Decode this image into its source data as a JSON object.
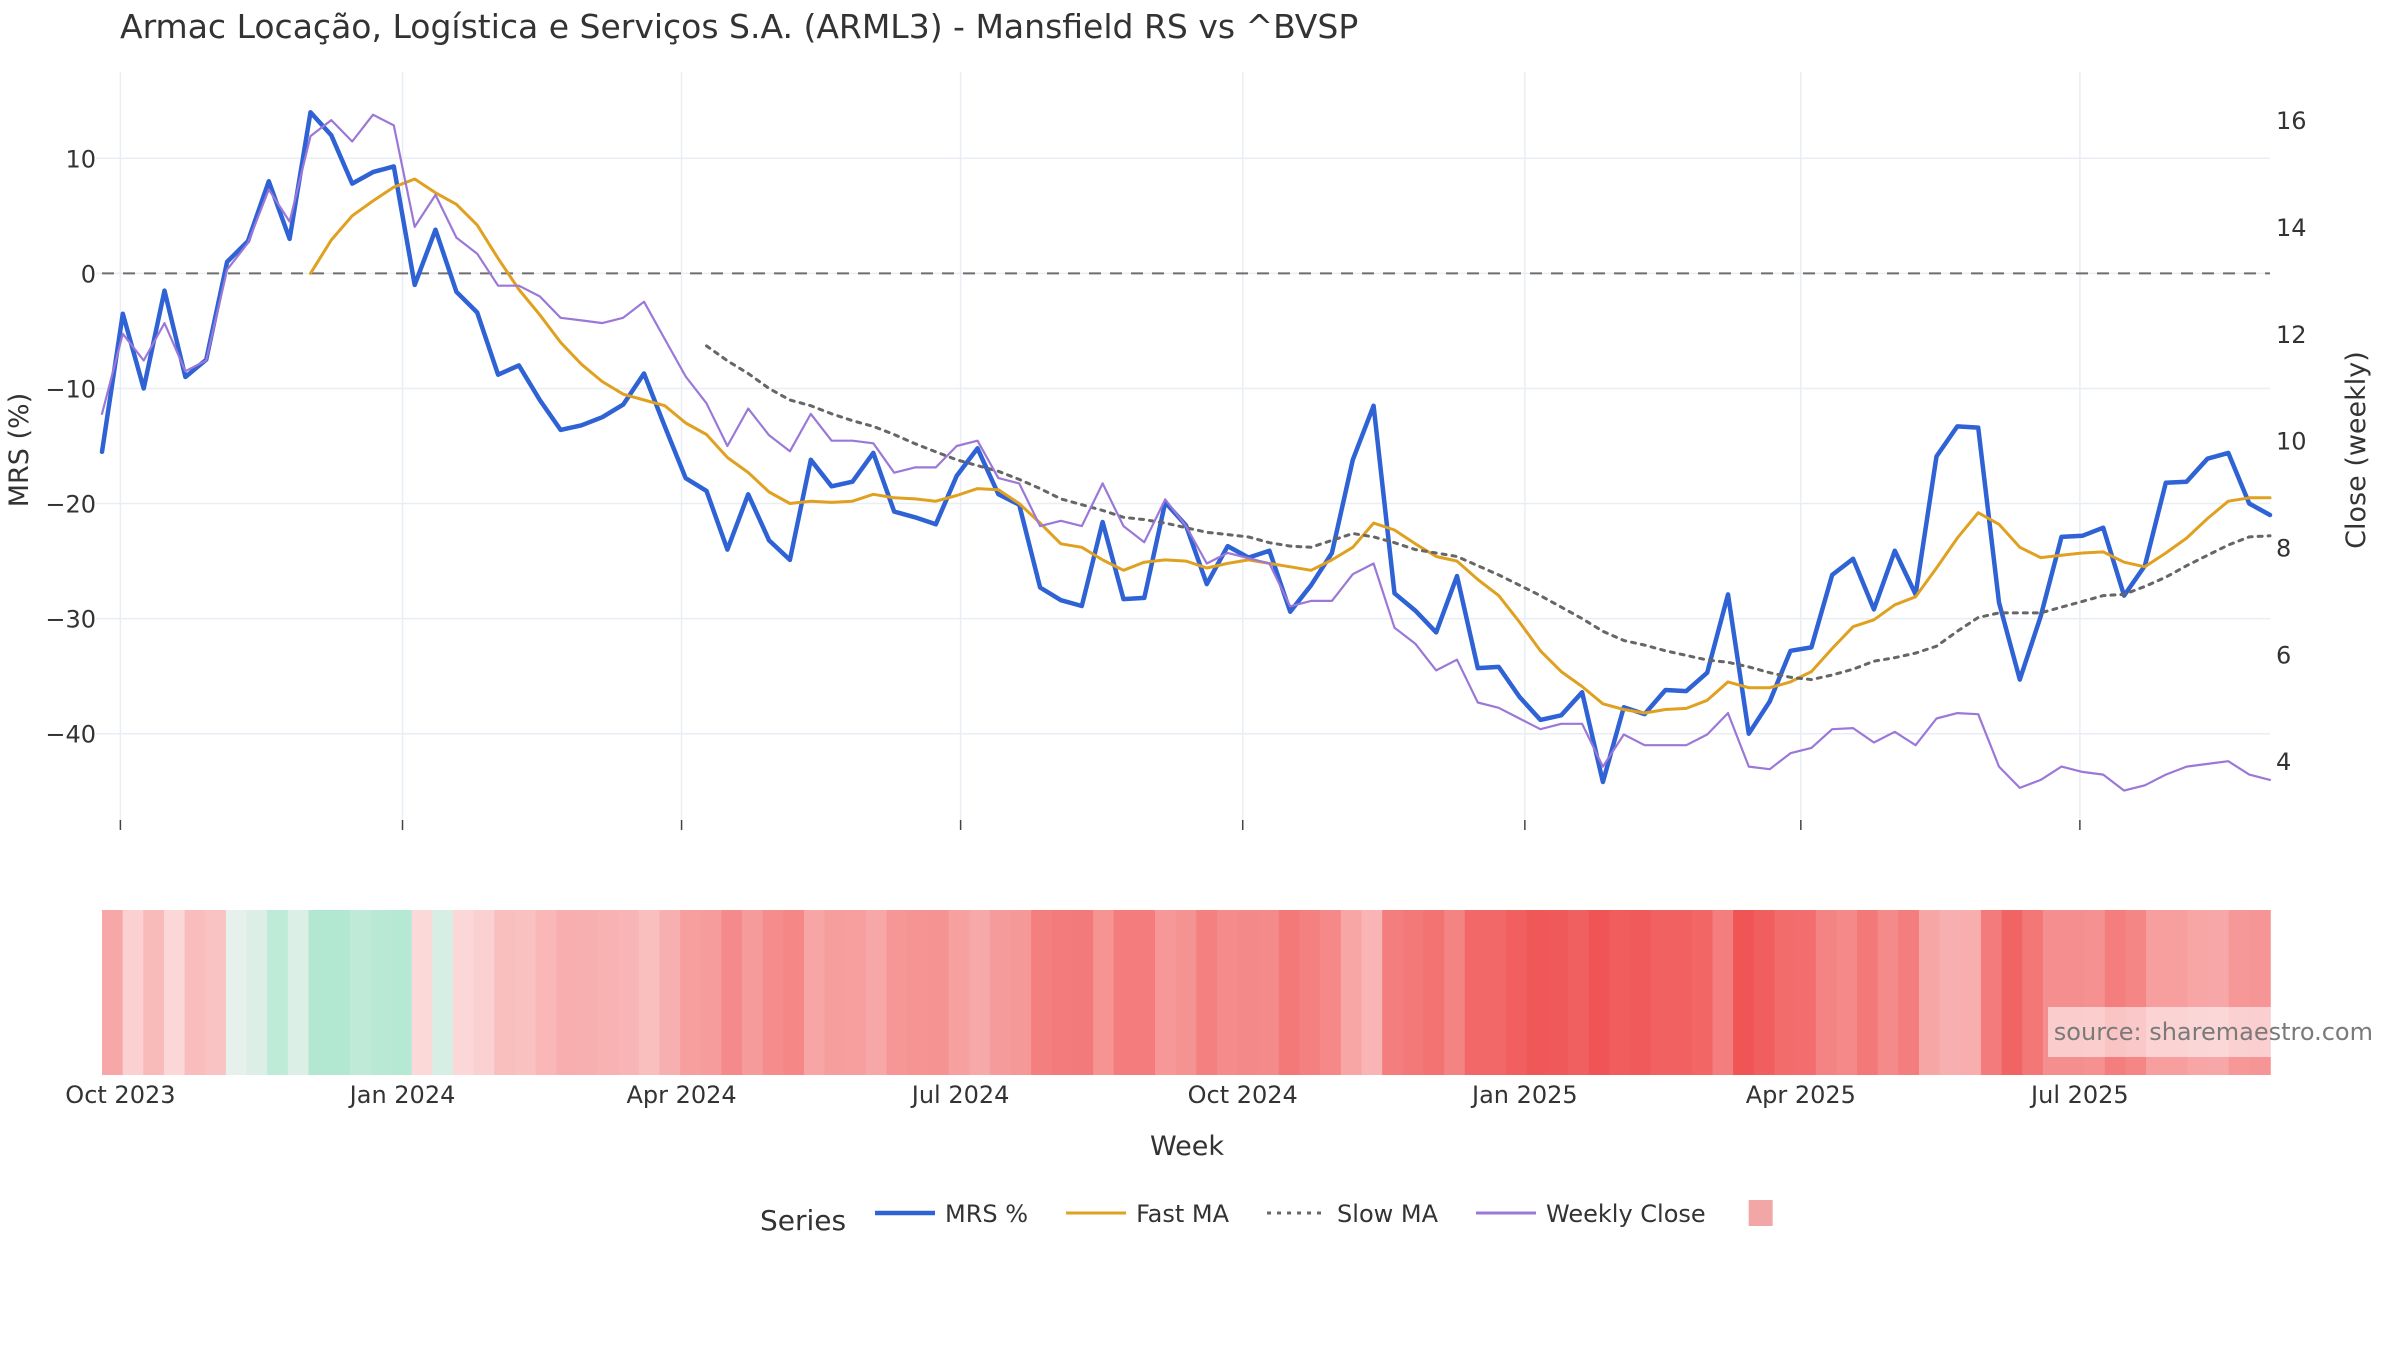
{
  "title": "Armac Locação, Logística e Serviços S.A. (ARML3) - Mansfield RS vs ^BVSP",
  "source": "source: sharemaestro.com",
  "chart_data": {
    "type": "line",
    "title": "Armac Locação, Logística e Serviços S.A. (ARML3) - Mansfield RS vs ^BVSP",
    "xlabel": "Week",
    "ylabel_left": "MRS (%)",
    "ylabel_right": "Close (weekly)",
    "ylim_left": [
      -47.5,
      17.5
    ],
    "ylim_right": [
      2.9,
      16.9
    ],
    "yticks_left": [
      10,
      0,
      -10,
      -20,
      -30,
      -40
    ],
    "yticks_right": [
      16,
      14,
      12,
      10,
      8,
      6,
      4
    ],
    "x_start": "2023-09-25",
    "x_end": "2025-09-01",
    "x_ticks": [
      {
        "date": "2023-10-01",
        "label": "Oct 2023"
      },
      {
        "date": "2024-01-01",
        "label": "Jan 2024"
      },
      {
        "date": "2024-04-01",
        "label": "Apr 2024"
      },
      {
        "date": "2024-07-01",
        "label": "Jul 2024"
      },
      {
        "date": "2024-10-01",
        "label": "Oct 2024"
      },
      {
        "date": "2025-01-01",
        "label": "Jan 2025"
      },
      {
        "date": "2025-04-01",
        "label": "Apr 2025"
      },
      {
        "date": "2025-07-01",
        "label": "Jul 2025"
      }
    ],
    "reference_line": 0,
    "grid": true,
    "legend_title": "Series",
    "legend_position": "bottom-center",
    "series": [
      {
        "name": "MRS %",
        "axis": "left",
        "color": "#2f62d4",
        "style": "solid",
        "values": [
          -15.5,
          -3.5,
          -10,
          -1.5,
          -9,
          -7.5,
          1,
          2.8,
          8,
          3,
          14,
          12,
          7.8,
          8.8,
          9.3,
          -1,
          3.8,
          -1.6,
          -3.4,
          -8.8,
          -8,
          -11,
          -13.6,
          -13.2,
          -12.5,
          -11.4,
          -8.7,
          -13.3,
          -17.8,
          -18.9,
          -24,
          -19.2,
          -23.2,
          -24.9,
          -16.2,
          -18.5,
          -18.1,
          -15.6,
          -20.7,
          -21.2,
          -21.8,
          -17.6,
          -15.2,
          -19.2,
          -20.1,
          -27.3,
          -28.4,
          -28.9,
          -21.6,
          -28.3,
          -28.2,
          -19.9,
          -21.9,
          -27,
          -23.7,
          -24.7,
          -24.1,
          -29.4,
          -27.1,
          -24.3,
          -16.2,
          -11.5,
          -27.8,
          -29.3,
          -31.2,
          -26.3,
          -34.3,
          -34.2,
          -36.8,
          -38.8,
          -38.4,
          -36.4,
          -44.2,
          -37.7,
          -38.3,
          -36.2,
          -36.3,
          -34.7,
          -27.9,
          -40,
          -37.2,
          -32.8,
          -32.5,
          -26.2,
          -24.8,
          -29.2,
          -24.1,
          -27.9,
          -15.9,
          -13.3,
          -13.4,
          -28.6,
          -35.3,
          -29.8,
          -22.9,
          -22.8,
          -22.1,
          -28,
          -25.4,
          -18.2,
          -18.1,
          -16.1,
          -15.6,
          -20,
          -21
        ]
      },
      {
        "name": "Fast MA",
        "axis": "left",
        "color": "#e0a020",
        "style": "solid",
        "values": [
          null,
          null,
          null,
          null,
          null,
          null,
          null,
          null,
          null,
          null,
          0,
          2.9,
          5,
          6.3,
          7.5,
          8.2,
          7,
          6,
          4.2,
          1.3,
          -1.4,
          -3.6,
          -6,
          -7.9,
          -9.4,
          -10.5,
          -11,
          -11.5,
          -13,
          -14,
          -16,
          -17.3,
          -19,
          -20,
          -19.8,
          -19.9,
          -19.8,
          -19.2,
          -19.5,
          -19.6,
          -19.8,
          -19.3,
          -18.7,
          -18.8,
          -20,
          -21.7,
          -23.5,
          -23.8,
          -24.9,
          -25.8,
          -25.1,
          -24.9,
          -25,
          -25.6,
          -25.2,
          -24.9,
          -25.2,
          -25.5,
          -25.8,
          -24.9,
          -23.8,
          -21.7,
          -22.3,
          -23.5,
          -24.6,
          -25,
          -26.6,
          -28,
          -30.3,
          -32.8,
          -34.6,
          -35.9,
          -37.4,
          -37.9,
          -38.2,
          -37.9,
          -37.8,
          -37.1,
          -35.5,
          -36,
          -36,
          -35.5,
          -34.6,
          -32.6,
          -30.7,
          -30.1,
          -28.8,
          -28.1,
          -25.6,
          -23,
          -20.8,
          -21.8,
          -23.8,
          -24.7,
          -24.5,
          -24.3,
          -24.2,
          -25.1,
          -25.5,
          -24.3,
          -23,
          -21.3,
          -19.8,
          -19.5,
          -19.5
        ]
      },
      {
        "name": "Slow MA",
        "axis": "left",
        "color": "#666666",
        "style": "dotted",
        "values": [
          null,
          null,
          null,
          null,
          null,
          null,
          null,
          null,
          null,
          null,
          null,
          null,
          null,
          null,
          null,
          null,
          null,
          null,
          null,
          null,
          null,
          null,
          null,
          null,
          null,
          null,
          null,
          null,
          null,
          -6.3,
          -7.6,
          -8.7,
          -10,
          -11,
          -11.5,
          -12.2,
          -12.8,
          -13.3,
          -14,
          -14.8,
          -15.5,
          -16.2,
          -16.7,
          -17.2,
          -17.9,
          -18.7,
          -19.6,
          -20.1,
          -20.6,
          -21.2,
          -21.4,
          -21.7,
          -22.1,
          -22.5,
          -22.7,
          -22.9,
          -23.4,
          -23.7,
          -23.8,
          -23.2,
          -22.6,
          -22.9,
          -23.4,
          -24,
          -24.3,
          -24.6,
          -25.4,
          -26.2,
          -27.1,
          -28,
          -29,
          -30,
          -31.1,
          -31.9,
          -32.3,
          -32.8,
          -33.2,
          -33.6,
          -33.8,
          -34.2,
          -34.7,
          -35.1,
          -35.3,
          -34.9,
          -34.4,
          -33.7,
          -33.4,
          -33,
          -32.4,
          -31.1,
          -29.9,
          -29.5,
          -29.5,
          -29.5,
          -29,
          -28.5,
          -28,
          -27.9,
          -27.2,
          -26.4,
          -25.4,
          -24.5,
          -23.6,
          -22.9,
          -22.8
        ]
      },
      {
        "name": "Weekly Close",
        "axis": "right",
        "color": "#9b78d8",
        "style": "solid",
        "values": [
          10.5,
          12,
          11.5,
          12.2,
          11.3,
          11.5,
          13.2,
          13.7,
          14.7,
          14.1,
          15.7,
          16,
          15.6,
          16.1,
          15.9,
          14,
          14.6,
          13.8,
          13.5,
          12.9,
          12.9,
          12.7,
          12.3,
          12.25,
          12.2,
          12.3,
          12.6,
          11.9,
          11.2,
          10.7,
          9.9,
          10.6,
          10.1,
          9.8,
          10.5,
          10,
          10,
          9.95,
          9.4,
          9.5,
          9.5,
          9.9,
          10,
          9.3,
          9.2,
          8.4,
          8.5,
          8.4,
          9.2,
          8.4,
          8.1,
          8.9,
          8.4,
          7.7,
          7.9,
          7.8,
          7.7,
          6.9,
          7,
          7,
          7.5,
          7.7,
          6.5,
          6.2,
          5.7,
          5.9,
          5.1,
          5,
          4.8,
          4.6,
          4.7,
          4.7,
          3.9,
          4.5,
          4.3,
          4.3,
          4.3,
          4.5,
          4.9,
          3.9,
          3.85,
          4.15,
          4.25,
          4.6,
          4.62,
          4.35,
          4.55,
          4.3,
          4.8,
          4.9,
          4.88,
          3.9,
          3.5,
          3.65,
          3.9,
          3.8,
          3.75,
          3.45,
          3.55,
          3.75,
          3.9,
          3.95,
          4,
          3.75,
          3.65
        ]
      }
    ],
    "heat_strip": {
      "legend_swatch_color": "#f3a6a6",
      "values": [
        -15.5,
        -3.5,
        -10,
        -1.5,
        -9,
        -7.5,
        1,
        2.8,
        8,
        3,
        14,
        12,
        7.8,
        8.8,
        9.3,
        -1,
        3.8,
        -1.6,
        -3.4,
        -8.8,
        -8,
        -11,
        -13.6,
        -13.2,
        -12.5,
        -11.4,
        -8.7,
        -13.3,
        -17.8,
        -18.9,
        -24,
        -19.2,
        -23.2,
        -24.9,
        -16.2,
        -18.5,
        -18.1,
        -15.6,
        -20.7,
        -21.2,
        -21.8,
        -17.6,
        -15.2,
        -19.2,
        -20.1,
        -27.3,
        -28.4,
        -28.9,
        -21.6,
        -28.3,
        -28.2,
        -19.9,
        -21.9,
        -27,
        -23.7,
        -24.7,
        -24.1,
        -29.4,
        -27.1,
        -24.3,
        -16.2,
        -11.5,
        -27.8,
        -29.3,
        -31.2,
        -26.3,
        -34.3,
        -34.2,
        -36.8,
        -38.8,
        -38.4,
        -36.4,
        -44.2,
        -37.7,
        -38.3,
        -36.2,
        -36.3,
        -34.7,
        -27.9,
        -40,
        -37.2,
        -32.8,
        -32.5,
        -26.2,
        -24.8,
        -29.2,
        -24.1,
        -27.9,
        -15.9,
        -13.3,
        -13.4,
        -28.6,
        -35.3,
        -29.8,
        -22.9,
        -22.8,
        -22.1,
        -28,
        -25.4,
        -18.2,
        -18.1,
        -16.1,
        -15.6,
        -20,
        -21
      ]
    }
  }
}
